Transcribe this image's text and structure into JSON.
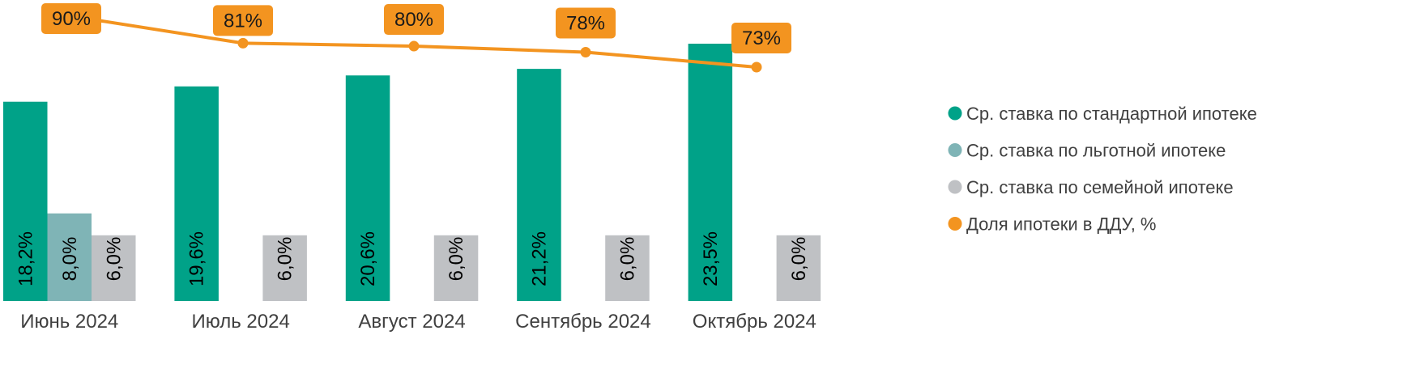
{
  "chart_data": {
    "type": "bar",
    "categories": [
      "Июнь 2024",
      "Июль 2024",
      "Август 2024",
      "Сентябрь 2024",
      "Октябрь 2024"
    ],
    "series": [
      {
        "name": "Ср. ставка по стандартной ипотеке",
        "type": "bar",
        "color": "#00a288",
        "values": [
          18.2,
          19.6,
          20.6,
          21.2,
          23.5
        ],
        "labels": [
          "18,2%",
          "19,6%",
          "20,6%",
          "21,2%",
          "23,5%"
        ]
      },
      {
        "name": "Ср. ставка по льготной ипотеке",
        "type": "bar",
        "color": "#7fb4b6",
        "values": [
          8.0,
          null,
          null,
          null,
          null
        ],
        "labels": [
          "8,0%",
          "",
          "",
          "",
          ""
        ]
      },
      {
        "name": "Ср. ставка по семейной ипотеке",
        "type": "bar",
        "color": "#bfc1c4",
        "values": [
          6.0,
          6.0,
          6.0,
          6.0,
          6.0
        ],
        "labels": [
          "6,0%",
          "6,0%",
          "6,0%",
          "6,0%",
          "6,0%"
        ]
      },
      {
        "name": "Доля ипотеки в ДДУ, %",
        "type": "line",
        "color": "#f39420",
        "values": [
          90,
          81,
          80,
          78,
          73
        ],
        "labels": [
          "90%",
          "81%",
          "80%",
          "78%",
          "73%"
        ]
      }
    ],
    "ylim_bars": [
      0,
      27
    ],
    "ylim_line": [
      0,
      100
    ],
    "grid": false,
    "legend_position": "right",
    "title": "",
    "xlabel": "",
    "ylabel": ""
  }
}
